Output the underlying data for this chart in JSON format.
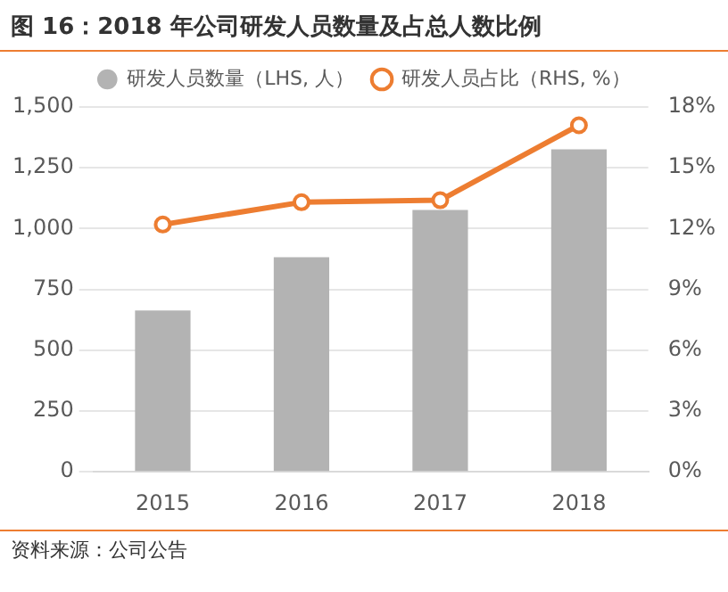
{
  "chart_data": {
    "type": "bar",
    "title": "图 16：2018 年公司研发人员数量及占总人数比例",
    "categories": [
      "2015",
      "2016",
      "2017",
      "2018"
    ],
    "series": [
      {
        "name": "研发人员数量（LHS, 人）",
        "color": "#b3b3b3",
        "values": [
          663,
          882,
          1077,
          1326
        ]
      },
      {
        "name": "研发人员占比（RHS, %）",
        "type": "line",
        "axis": "y2",
        "color": "#ed7d31",
        "values": [
          12.2,
          13.3,
          13.4,
          17.1
        ]
      }
    ],
    "ylim": [
      0,
      1500
    ],
    "yticks": [
      {
        "value": 0,
        "label": "0"
      },
      {
        "value": 250,
        "label": "250"
      },
      {
        "value": 500,
        "label": "500"
      },
      {
        "value": 750,
        "label": "750"
      },
      {
        "value": 1000,
        "label": "1,000"
      },
      {
        "value": 1250,
        "label": "1,250"
      },
      {
        "value": 1500,
        "label": "1,500"
      }
    ],
    "y2lim": [
      0,
      18
    ],
    "y2ticks": [
      {
        "value": 0,
        "label": "0%"
      },
      {
        "value": 3,
        "label": "3%"
      },
      {
        "value": 6,
        "label": "6%"
      },
      {
        "value": 9,
        "label": "9%"
      },
      {
        "value": 12,
        "label": "12%"
      },
      {
        "value": 15,
        "label": "15%"
      },
      {
        "value": 18,
        "label": "18%"
      }
    ],
    "grid": "y",
    "legend": "top",
    "marker": "circle",
    "line_style": "solid",
    "annotations": [
      "资料来源：公司公告"
    ]
  }
}
